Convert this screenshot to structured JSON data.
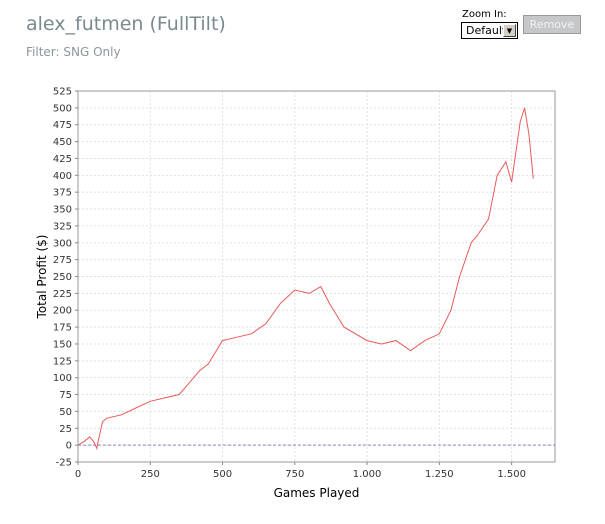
{
  "header": {
    "title": "alex_futmen (FullTilt)",
    "filter": "Filter: SNG Only"
  },
  "zoom": {
    "label": "Zoom In:",
    "value": "Default"
  },
  "remove_label": "Remove",
  "colors": {
    "series": "#e85a5a",
    "zero_line": "#8888cc",
    "grid": "#e0e0e0",
    "title": "#7a8a8e"
  },
  "chart_data": {
    "type": "line",
    "xlabel": "Games Played",
    "ylabel": "Total Profit ($)",
    "xlim": [
      0,
      1650
    ],
    "ylim": [
      -25,
      525
    ],
    "xticks": [
      0,
      250,
      500,
      750,
      1000,
      1250,
      1500
    ],
    "xtick_labels": [
      "0",
      "250",
      "500",
      "750",
      "1.000",
      "1.250",
      "1.500"
    ],
    "yticks": [
      -25,
      0,
      25,
      50,
      75,
      100,
      125,
      150,
      175,
      200,
      225,
      250,
      275,
      300,
      325,
      350,
      375,
      400,
      425,
      450,
      475,
      500,
      525
    ],
    "grid": true,
    "reference_line": 0,
    "series": [
      {
        "x": [
          0,
          20,
          40,
          55,
          65,
          72,
          85,
          100,
          150,
          200,
          250,
          300,
          350,
          380,
          420,
          450,
          500,
          550,
          600,
          650,
          700,
          750,
          800,
          840,
          870,
          920,
          1000,
          1050,
          1100,
          1150,
          1200,
          1250,
          1290,
          1320,
          1360,
          1380,
          1420,
          1450,
          1480,
          1500,
          1530,
          1545,
          1560,
          1575
        ],
        "y": [
          0,
          5,
          12,
          5,
          -5,
          10,
          35,
          40,
          45,
          55,
          65,
          70,
          75,
          90,
          110,
          120,
          155,
          160,
          165,
          180,
          210,
          230,
          225,
          235,
          210,
          175,
          155,
          150,
          155,
          140,
          155,
          165,
          200,
          250,
          300,
          310,
          335,
          400,
          420,
          390,
          480,
          500,
          460,
          395
        ]
      }
    ]
  }
}
